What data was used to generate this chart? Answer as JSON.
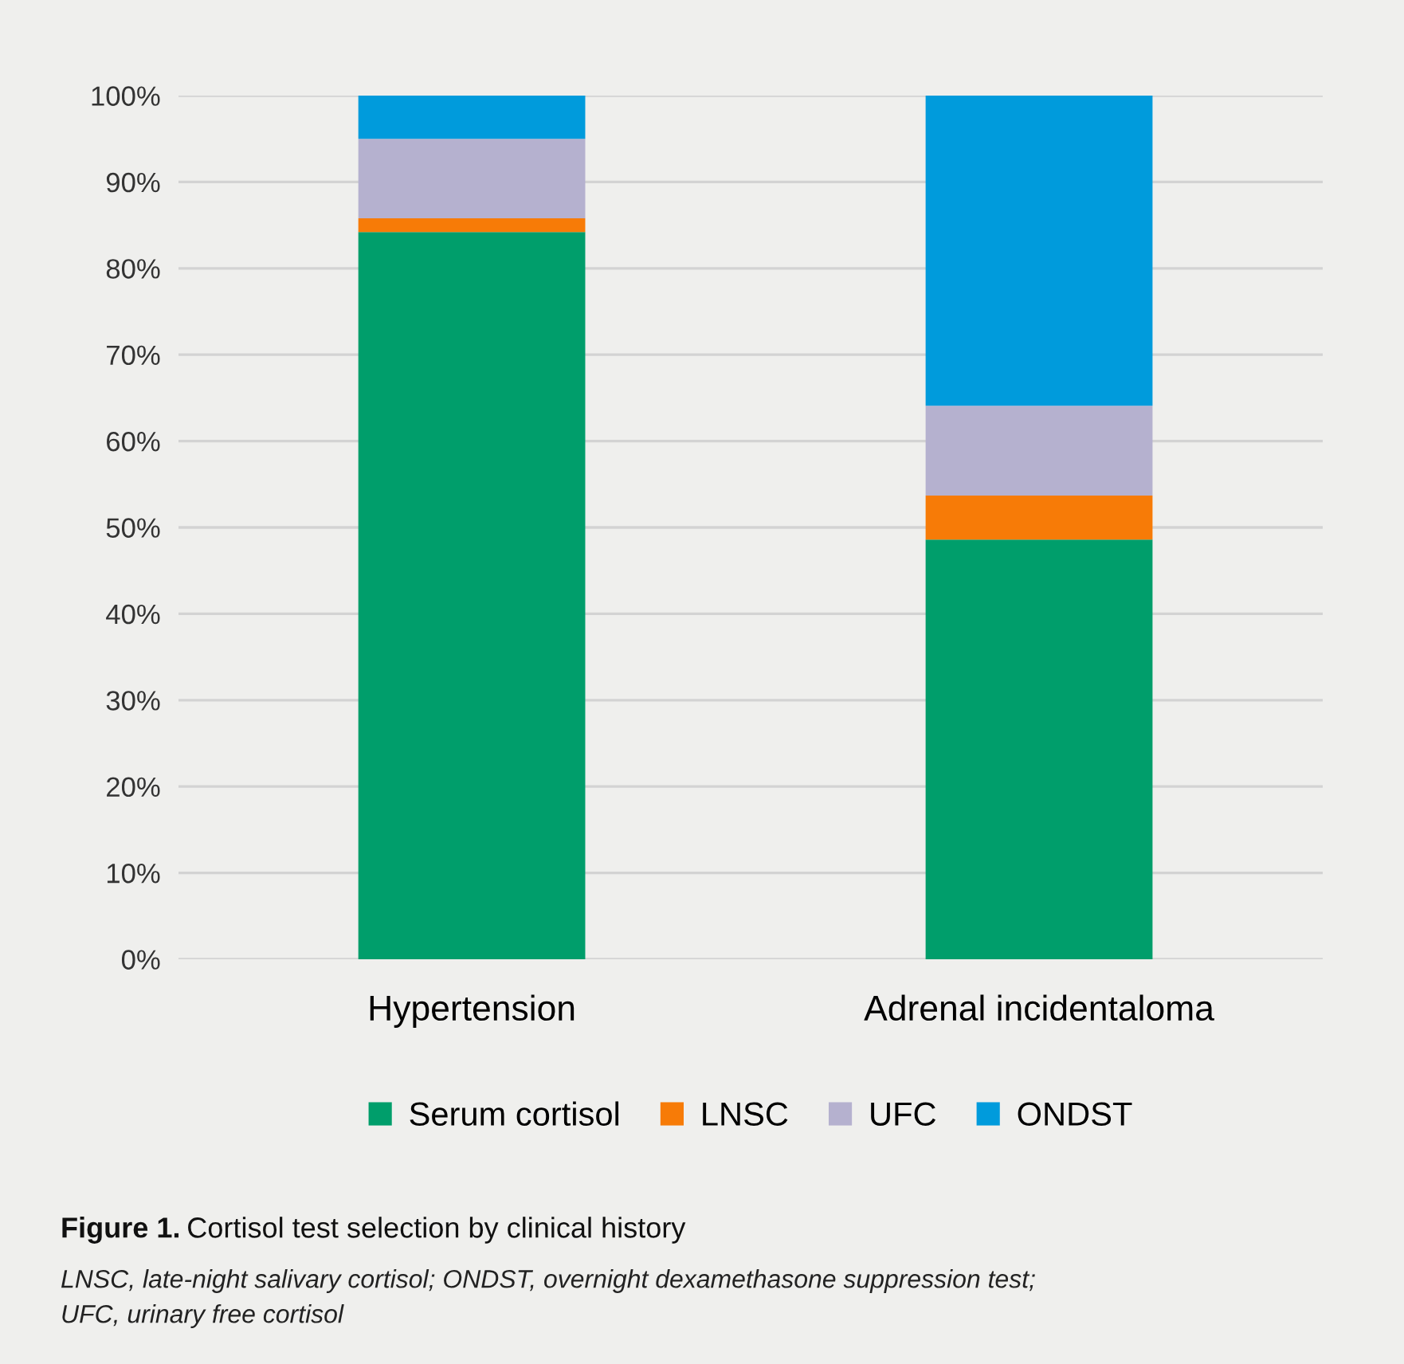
{
  "chart_data": {
    "type": "bar",
    "stacked": true,
    "categories": [
      "Hypertension",
      "Adrenal incidentaloma"
    ],
    "series": [
      {
        "name": "Serum cortisol",
        "color": "#009e6b",
        "values": [
          84.2,
          48.6
        ]
      },
      {
        "name": "LNSC",
        "color": "#f77b07",
        "values": [
          1.6,
          5.1
        ]
      },
      {
        "name": "UFC",
        "color": "#b5b1cf",
        "values": [
          9.2,
          10.4
        ]
      },
      {
        "name": "ONDST",
        "color": "#009bdc",
        "values": [
          5.0,
          35.9
        ]
      }
    ],
    "ylim": [
      0,
      100
    ],
    "yticks": [
      {
        "value": 0,
        "label": "0%"
      },
      {
        "value": 10,
        "label": "10%"
      },
      {
        "value": 20,
        "label": "20%"
      },
      {
        "value": 30,
        "label": "30%"
      },
      {
        "value": 40,
        "label": "40%"
      },
      {
        "value": 50,
        "label": "50%"
      },
      {
        "value": 60,
        "label": "60%"
      },
      {
        "value": 70,
        "label": "70%"
      },
      {
        "value": 80,
        "label": "80%"
      },
      {
        "value": 90,
        "label": "90%"
      },
      {
        "value": 100,
        "label": "100%"
      }
    ],
    "grid": "y",
    "legend": "bottom",
    "annotations": [
      "Figure 1.",
      "Cortisol test selection by clinical history",
      "LNSC, late-night salivary cortisol; ONDST, overnight dexamethasone suppression test;",
      "UFC, urinary free cortisol"
    ]
  }
}
